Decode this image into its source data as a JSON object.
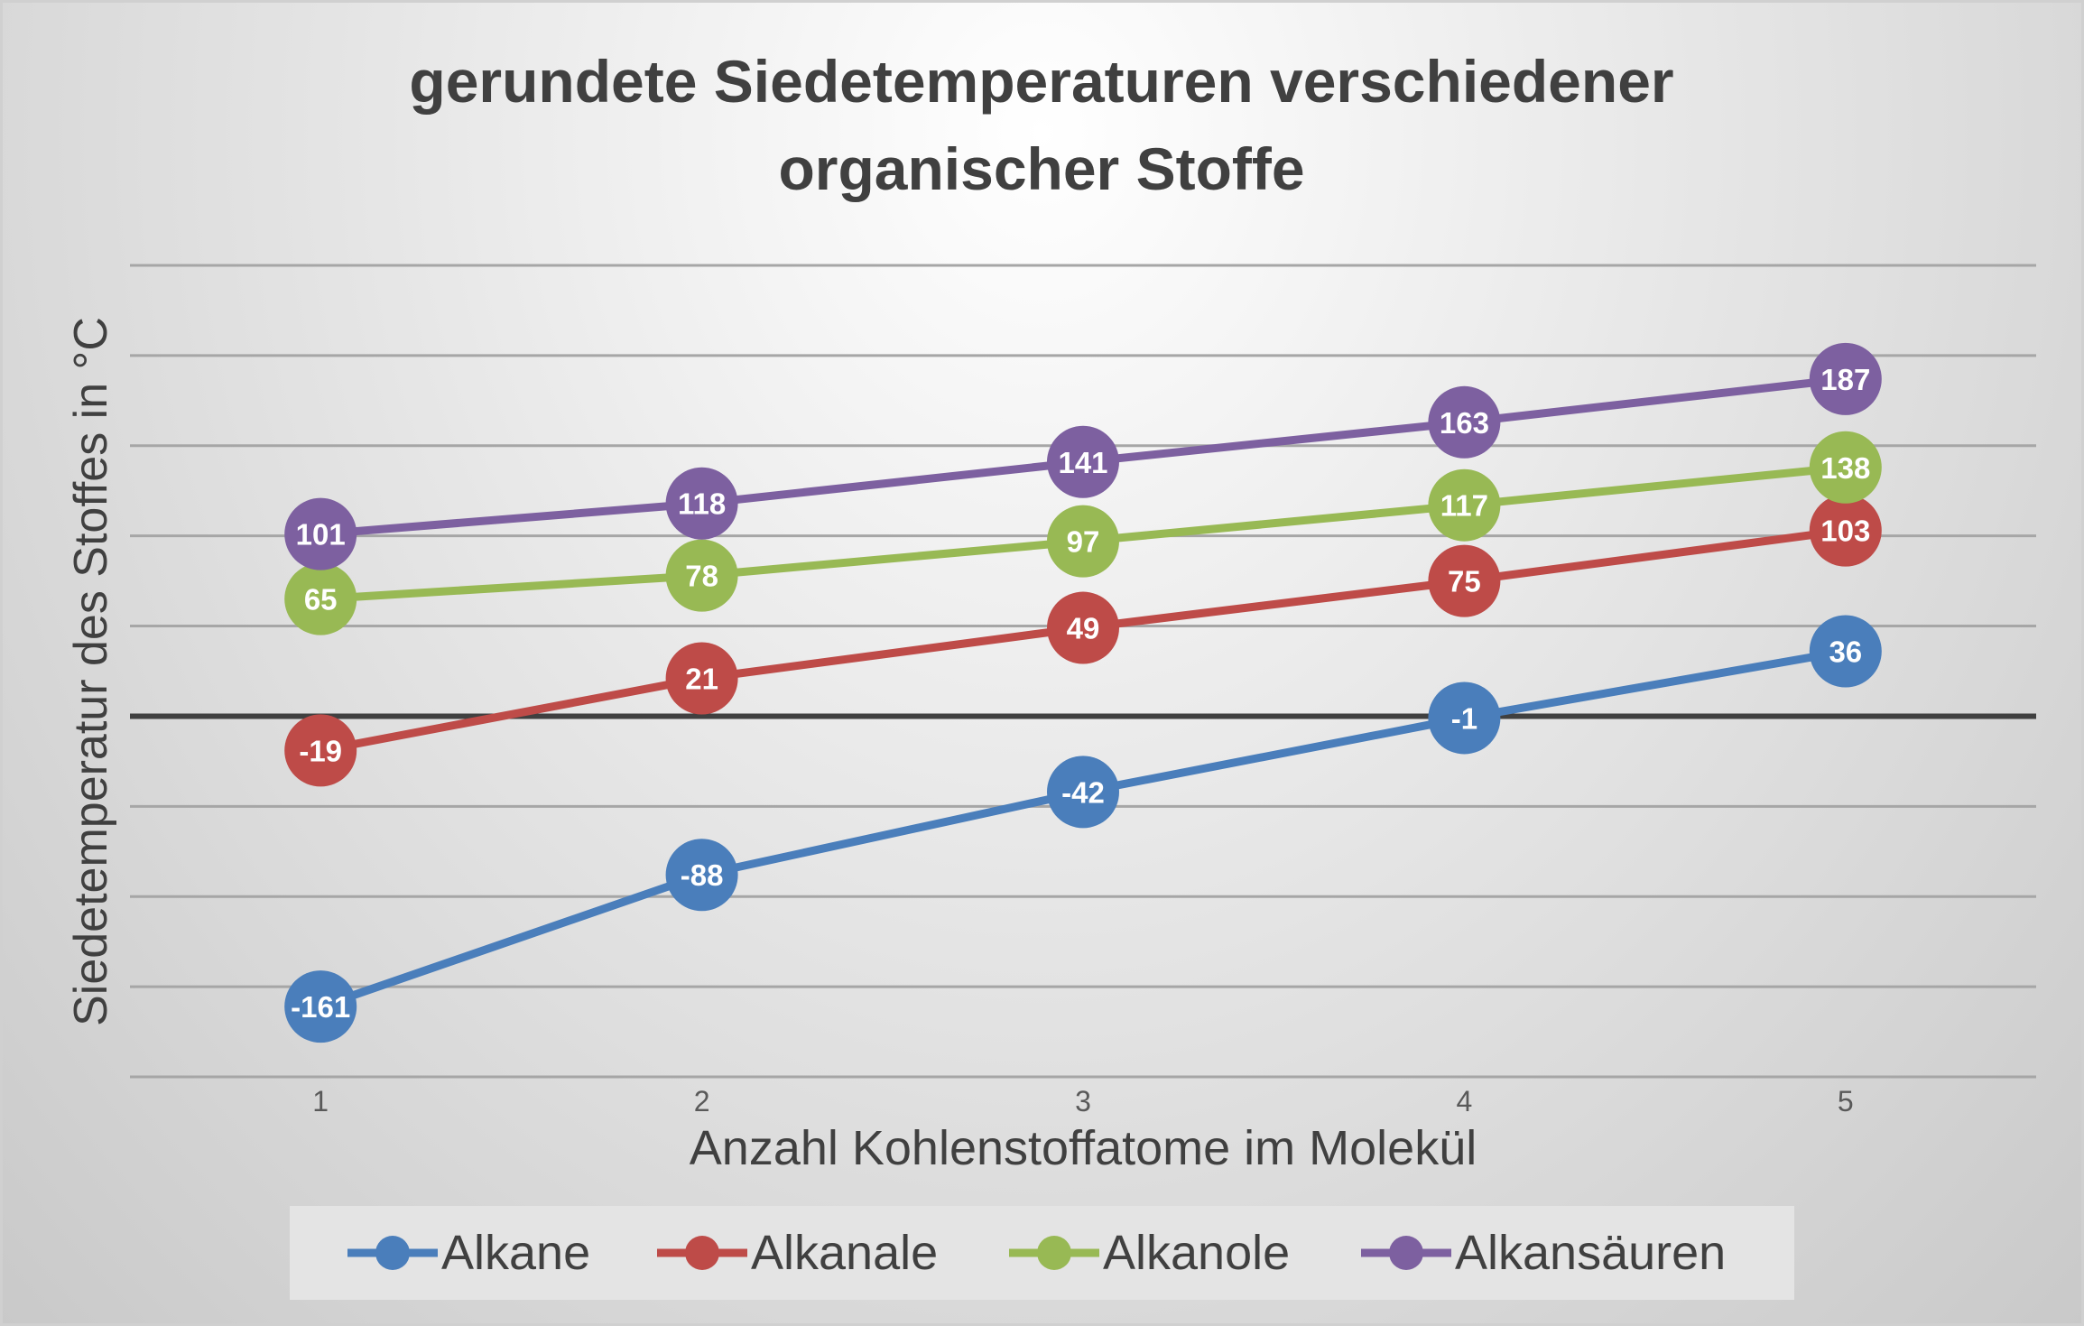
{
  "chart_data": {
    "type": "line",
    "title": "gerundete Siedetemperaturen verschiedener organischer Stoffe",
    "title_lines": [
      "gerundete Siedetemperaturen verschiedener",
      "organischer Stoffe"
    ],
    "xlabel": "Anzahl Kohlenstoffatome im Molekül",
    "ylabel": "Siedetemperatur des Stoffes in °C",
    "categories": [
      "1",
      "2",
      "3",
      "4",
      "5"
    ],
    "ylim": [
      -200,
      250
    ],
    "ygrid_step": 50,
    "y_tick_labels_shown": false,
    "grid": true,
    "legend_position": "bottom",
    "data_labels": true,
    "series": [
      {
        "name": "Alkane",
        "color": "#4a7ebb",
        "values": [
          -161,
          -88,
          -42,
          -1,
          36
        ]
      },
      {
        "name": "Alkanale",
        "color": "#be4b48",
        "values": [
          -19,
          21,
          49,
          75,
          103
        ]
      },
      {
        "name": "Alkanole",
        "color": "#98b954",
        "values": [
          65,
          78,
          97,
          117,
          138
        ]
      },
      {
        "name": "Alkansäuren",
        "color": "#7d60a0",
        "values": [
          101,
          118,
          141,
          163,
          187
        ]
      }
    ]
  }
}
